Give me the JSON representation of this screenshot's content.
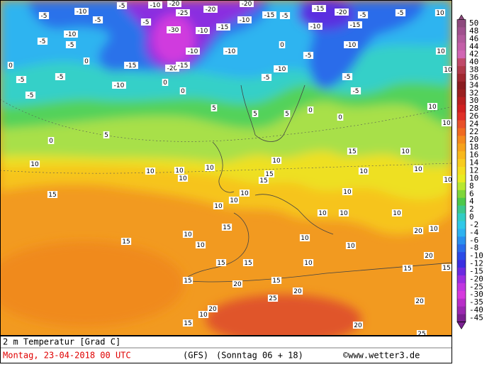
{
  "map": {
    "labels": [
      -10,
      -5,
      -5,
      -10,
      -20,
      -25,
      -20,
      -20,
      -15,
      -5,
      -15,
      -20,
      -5,
      -5,
      10,
      -5,
      -10,
      -5,
      -5,
      -5,
      -30,
      -10,
      -15,
      -10,
      -10,
      -10,
      0,
      -10,
      -15,
      -10,
      -5,
      0,
      -5,
      -5,
      -5,
      0,
      -15,
      -20,
      -15,
      -10,
      0,
      -10,
      -5,
      -5,
      -5,
      10,
      10,
      0,
      5,
      0,
      0,
      5,
      0,
      5,
      5,
      10,
      10,
      10,
      10,
      10,
      10,
      10,
      15,
      15,
      15,
      10,
      15,
      10,
      10,
      10,
      15,
      10,
      10,
      15,
      15,
      15,
      15,
      20,
      20,
      25,
      20,
      10,
      15,
      20,
      25,
      20,
      15,
      20,
      15,
      10,
      15,
      10,
      10,
      10,
      10,
      10,
      20,
      10,
      10,
      10,
      10,
      10,
      10
    ],
    "legend": {
      "levels": [
        50,
        48,
        46,
        44,
        42,
        40,
        38,
        36,
        34,
        32,
        30,
        28,
        26,
        24,
        22,
        20,
        18,
        16,
        14,
        12,
        10,
        8,
        6,
        4,
        2,
        0,
        -2,
        -4,
        -6,
        -8,
        -10,
        -12,
        -15,
        -20,
        -25,
        -30,
        -35,
        -40,
        -45
      ],
      "colors": [
        "#8e4a7e",
        "#a0518e",
        "#b25a9c",
        "#c35fa8",
        "#d166b4",
        "#c04a6a",
        "#b03a4a",
        "#a02830",
        "#8a1c20",
        "#9a2020",
        "#b82020",
        "#d02020",
        "#e03028",
        "#e8502a",
        "#f06a22",
        "#f48a1e",
        "#f6a21c",
        "#f8b81c",
        "#f8cc1e",
        "#f4de20",
        "#e8ec22",
        "#b8e830",
        "#7ed63a",
        "#4cc84a",
        "#3cc88c",
        "#32ccc4",
        "#30c8e8",
        "#2eb2f0",
        "#2a90ee",
        "#2a6cea",
        "#2a4ae6",
        "#3a2ee0",
        "#6a2ae0",
        "#9a2ee0",
        "#c036e0",
        "#d63ade",
        "#b82ec8",
        "#9a28b0",
        "#7a2090"
      ]
    },
    "footer": {
      "title": "2 m Temperatur [Grad C]",
      "date": "Montag, 23-04-2018  00 UTC",
      "model": "(GFS)",
      "run": "(Sonntag 06 + 18)",
      "credit": "©www.wetter3.de"
    }
  }
}
